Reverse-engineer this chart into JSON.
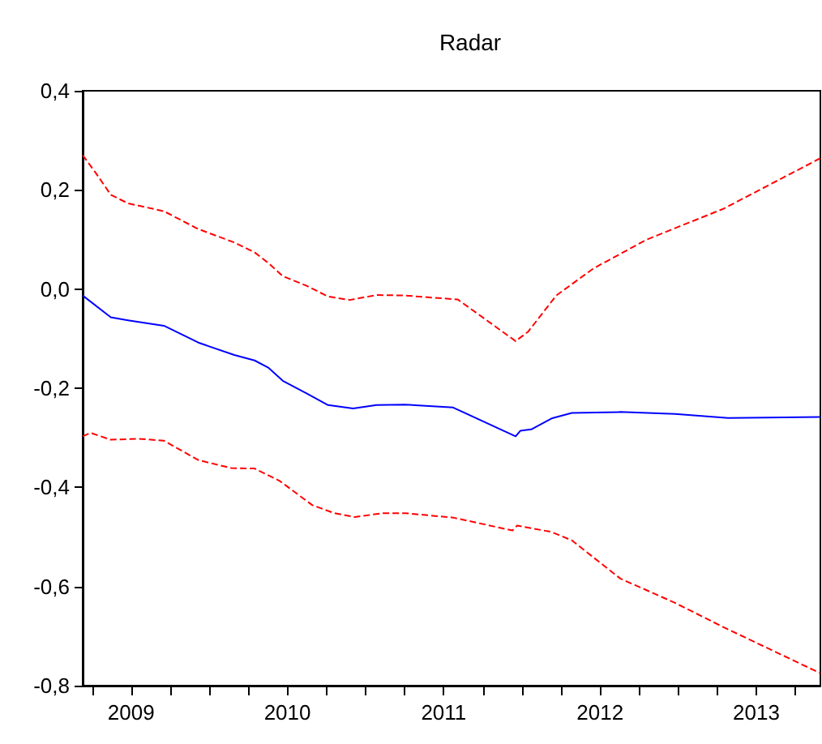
{
  "chart_data": {
    "type": "line",
    "title": "Radar",
    "xlim": [
      2009.19,
      2013.91
    ],
    "xticks": [
      {
        "value": 2009.25,
        "label": null
      },
      {
        "value": 2009.5,
        "label": "2009"
      },
      {
        "value": 2009.75,
        "label": null
      },
      {
        "value": 2010,
        "label": null
      },
      {
        "value": 2010.25,
        "label": null
      },
      {
        "value": 2010.5,
        "label": "2010"
      },
      {
        "value": 2010.75,
        "label": null
      },
      {
        "value": 2011,
        "label": null
      },
      {
        "value": 2011.25,
        "label": null
      },
      {
        "value": 2011.5,
        "label": "2011"
      },
      {
        "value": 2011.75,
        "label": null
      },
      {
        "value": 2012,
        "label": null
      },
      {
        "value": 2012.25,
        "label": null
      },
      {
        "value": 2012.5,
        "label": "2012"
      },
      {
        "value": 2012.75,
        "label": null
      },
      {
        "value": 2013,
        "label": null
      },
      {
        "value": 2013.25,
        "label": null
      },
      {
        "value": 2013.5,
        "label": "2013"
      },
      {
        "value": 2013.75,
        "label": null
      }
    ],
    "ylim": [
      -0.8,
      0.4
    ],
    "yticks": [
      {
        "value": -0.8,
        "label": "-0,8"
      },
      {
        "value": -0.6,
        "label": "-0,6"
      },
      {
        "value": -0.4,
        "label": "-0,4"
      },
      {
        "value": -0.2,
        "label": "-0,2"
      },
      {
        "value": 0,
        "label": "0,0"
      },
      {
        "value": 0.2,
        "label": "0,2"
      },
      {
        "value": 0.4,
        "label": "0,4"
      }
    ],
    "marker": "none",
    "series": [
      {
        "color": "#ff0000",
        "line_style": "dashed",
        "x": [
          2009.19,
          2009.27,
          2009.37,
          2009.48,
          2009.71,
          2009.93,
          2010.16,
          2010.29,
          2010.38,
          2010.47,
          2010.62,
          2010.76,
          2010.9,
          2011.07,
          2011.25,
          2011.59,
          2011.96,
          2012.04,
          2012.22,
          2012.46,
          2012.8,
          2013.29,
          2013.91
        ],
        "values": [
          0.27,
          0.236,
          0.19,
          0.173,
          0.157,
          0.121,
          0.094,
          0.074,
          0.052,
          0.026,
          0.007,
          -0.015,
          -0.022,
          -0.012,
          -0.013,
          -0.021,
          -0.105,
          -0.086,
          -0.013,
          0.042,
          0.1,
          0.162,
          0.264
        ]
      },
      {
        "color": "#0000ff",
        "line_style": "solid",
        "x": [
          2009.19,
          2009.37,
          2009.48,
          2009.71,
          2009.93,
          2010.16,
          2010.29,
          2010.38,
          2010.47,
          2010.62,
          2010.76,
          2010.92,
          2011.07,
          2011.25,
          2011.56,
          2011.96,
          2011.99,
          2012.06,
          2012.19,
          2012.32,
          2012.63,
          2012.98,
          2013.32,
          2013.91
        ],
        "values": [
          -0.013,
          -0.057,
          -0.063,
          -0.074,
          -0.108,
          -0.133,
          -0.144,
          -0.159,
          -0.185,
          -0.21,
          -0.234,
          -0.241,
          -0.234,
          -0.233,
          -0.239,
          -0.297,
          -0.286,
          -0.283,
          -0.261,
          -0.25,
          -0.248,
          -0.252,
          -0.26,
          -0.258
        ]
      },
      {
        "color": "#ff0000",
        "line_style": "dashed",
        "x": [
          2009.19,
          2009.24,
          2009.37,
          2009.55,
          2009.71,
          2009.93,
          2010.14,
          2010.29,
          2010.45,
          2010.66,
          2010.8,
          2010.93,
          2011.11,
          2011.25,
          2011.56,
          2011.94,
          2011.97,
          2012.19,
          2012.32,
          2012.63,
          2012.98,
          2013.29,
          2013.91
        ],
        "values": [
          -0.297,
          -0.29,
          -0.304,
          -0.302,
          -0.306,
          -0.345,
          -0.361,
          -0.362,
          -0.387,
          -0.436,
          -0.452,
          -0.46,
          -0.452,
          -0.452,
          -0.461,
          -0.487,
          -0.477,
          -0.49,
          -0.507,
          -0.584,
          -0.633,
          -0.682,
          -0.775
        ]
      }
    ]
  }
}
